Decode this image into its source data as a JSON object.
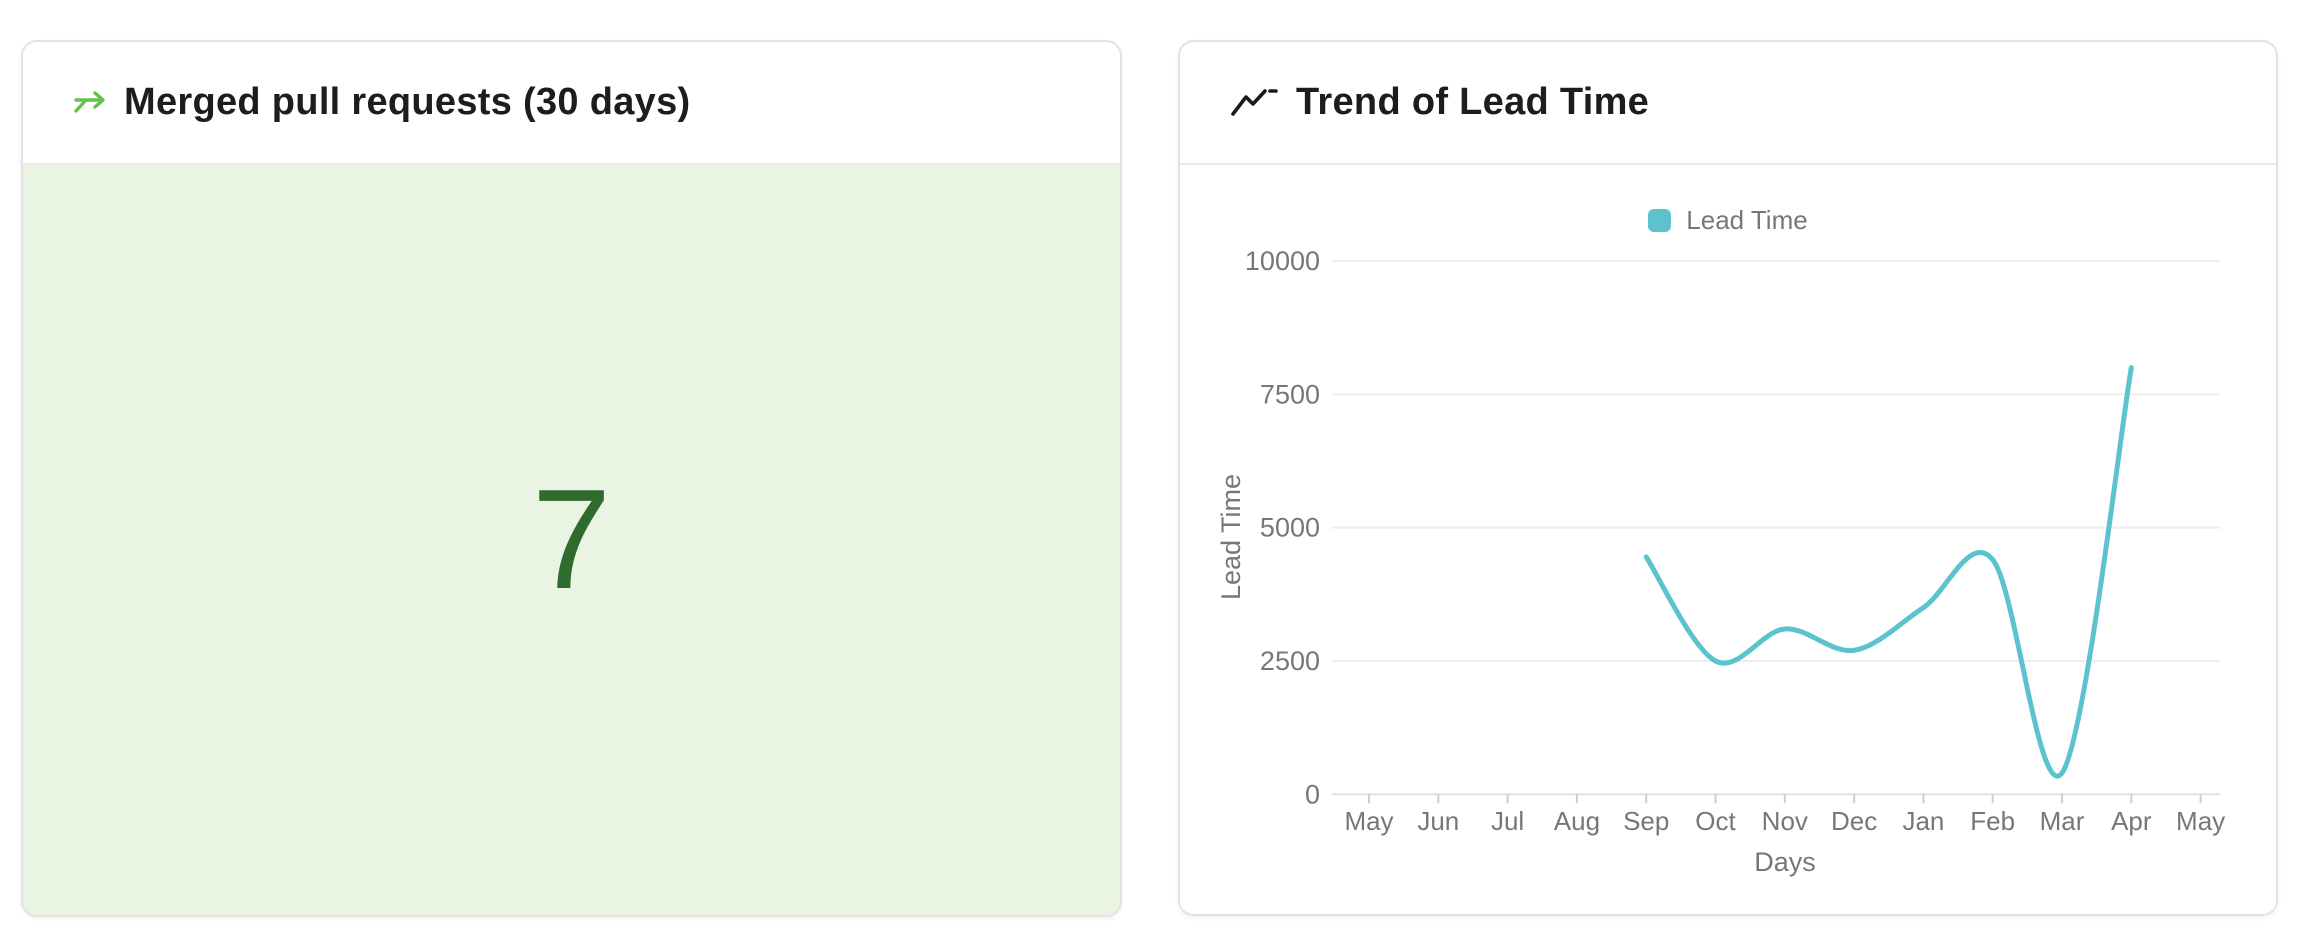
{
  "page": {
    "background": "#ffffff"
  },
  "colors": {
    "accent_green": "#65c24e",
    "value_green": "#2f6b2c",
    "panel_green_bg": "#e9f4e3",
    "teal": "#5cc3ce",
    "heading_text": "#1d1d1d",
    "axis_text": "#777777",
    "gridline": "#eeeeee",
    "zero_line": "#e2e2e2",
    "tick_mark": "#cfcfcf",
    "card_border": "#e3e3e6"
  },
  "cards": {
    "merged_prs": {
      "title": "Merged pull requests (30 days)",
      "value": "7",
      "icon": "merge-arrow-icon"
    },
    "lead_time": {
      "title": "Trend of Lead Time",
      "icon": "trend-line-icon"
    }
  },
  "chart_data": {
    "type": "line",
    "title": "Trend of Lead Time",
    "xlabel": "Days",
    "ylabel": "Lead Time",
    "legend": [
      "Lead Time"
    ],
    "legend_position": "top",
    "grid": true,
    "smooth": true,
    "categories": [
      "May",
      "Jun",
      "Jul",
      "Aug",
      "Sep",
      "Oct",
      "Nov",
      "Dec",
      "Jan",
      "Feb",
      "Mar",
      "Apr",
      "May"
    ],
    "yticks": [
      0,
      2500,
      5000,
      7500,
      10000
    ],
    "ylim": [
      0,
      10000
    ],
    "line_color": "#5cc3ce",
    "series": [
      {
        "name": "Lead Time",
        "points": [
          {
            "x": "Sep",
            "y": 4450
          },
          {
            "x": "Oct",
            "y": 2500
          },
          {
            "x": "Nov",
            "y": 3100
          },
          {
            "x": "Dec",
            "y": 2700
          },
          {
            "x": "Jan",
            "y": 3500
          },
          {
            "x": "Feb",
            "y": 4400
          },
          {
            "x": "Mar",
            "y": 400
          },
          {
            "x": "Apr",
            "y": 8000
          }
        ]
      }
    ]
  }
}
